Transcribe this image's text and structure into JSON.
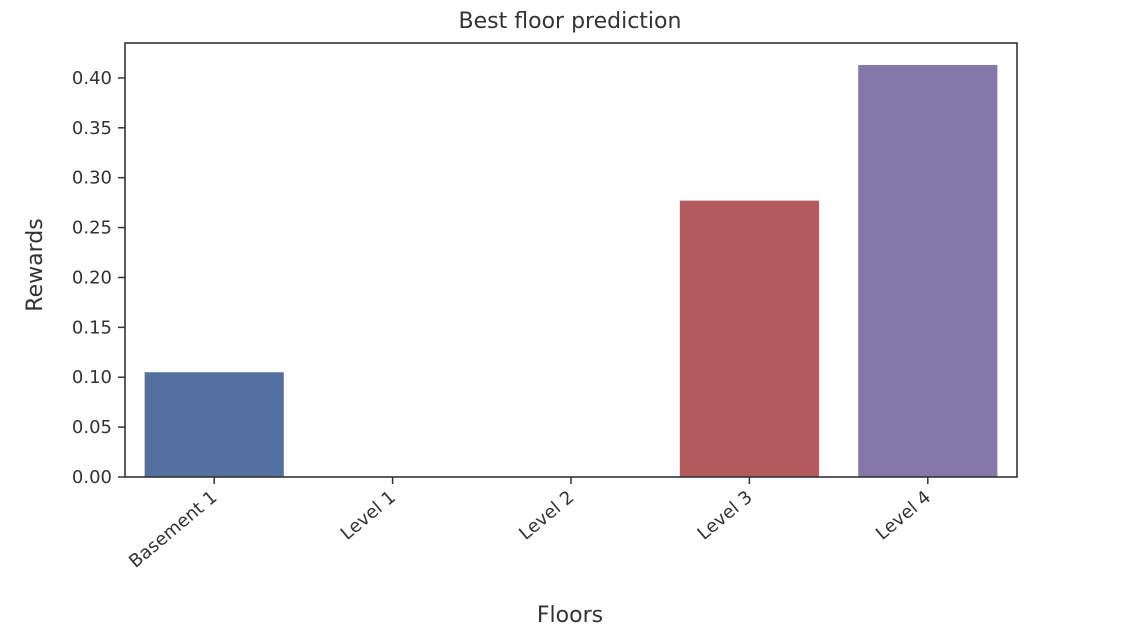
{
  "chart_data": {
    "type": "bar",
    "title": "Best floor prediction",
    "xlabel": "Floors",
    "ylabel": "Rewards",
    "categories": [
      "Basement 1",
      "Level 1",
      "Level 2",
      "Level 3",
      "Level 4"
    ],
    "values": [
      0.105,
      0.0,
      0.0,
      0.277,
      0.413
    ],
    "colors": [
      "#5470a0",
      "#dd8452",
      "#55a868",
      "#b35a5e",
      "#8477a9"
    ],
    "ylim": [
      0.0,
      0.435
    ],
    "yticks": [
      0.0,
      0.05,
      0.1,
      0.15,
      0.2,
      0.25,
      0.3,
      0.35,
      0.4
    ],
    "ytick_labels": [
      "0.00",
      "0.05",
      "0.10",
      "0.15",
      "0.20",
      "0.25",
      "0.30",
      "0.35",
      "0.40"
    ],
    "grid": false,
    "legend": false
  }
}
